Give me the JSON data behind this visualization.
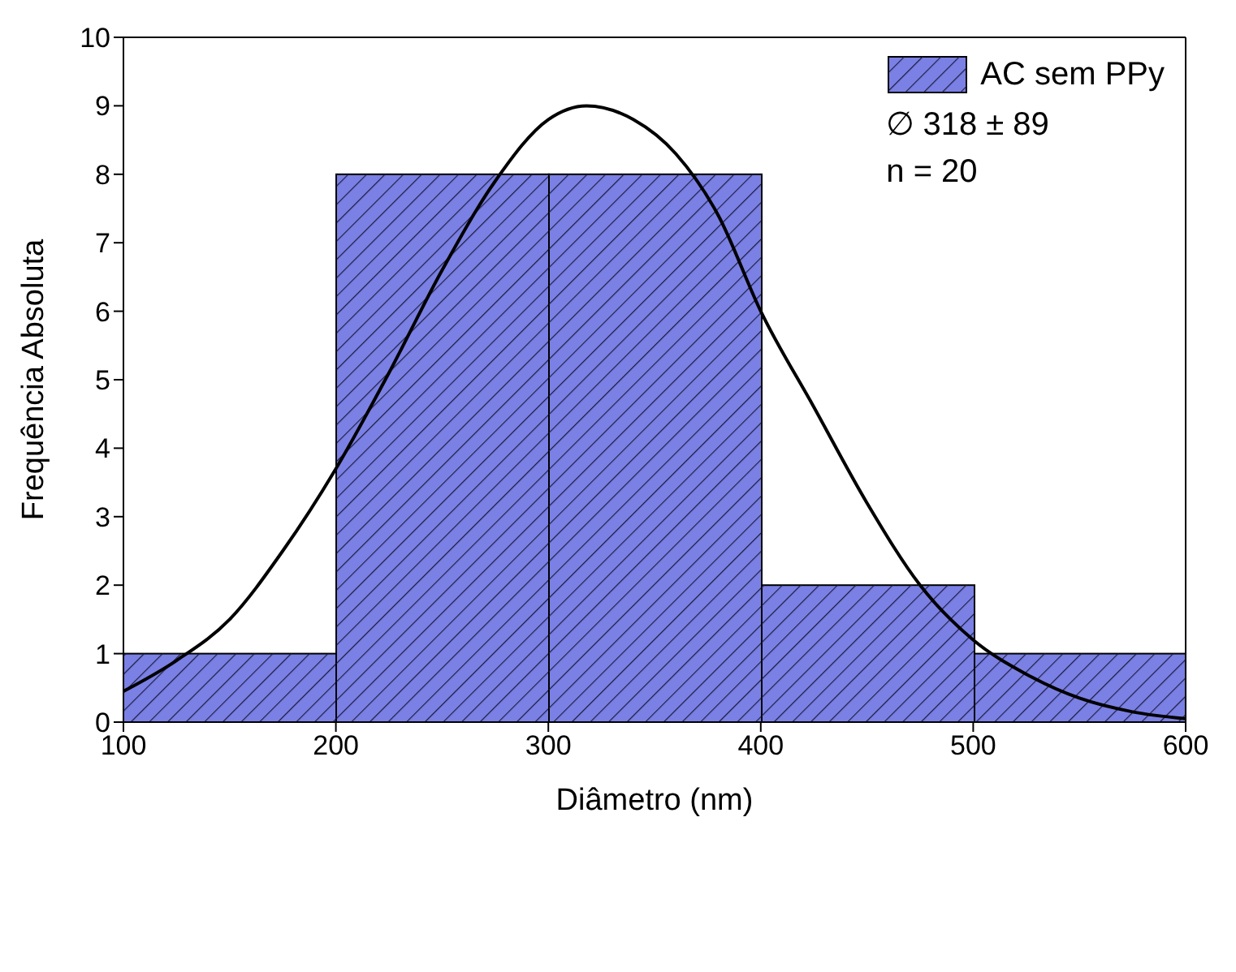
{
  "chart_data": {
    "type": "histogram",
    "xlabel": "Diâmetro (nm)",
    "ylabel": "Frequência Absoluta",
    "bins": [
      100,
      200,
      300,
      400,
      500,
      600
    ],
    "series": [
      {
        "name": "AC sem PPy",
        "color": "#7b80e4",
        "values": [
          1,
          8,
          8,
          2,
          1
        ]
      },
      {
        "type": "line",
        "color": "#000000",
        "x": [
          100,
          125,
          150,
          175,
          200,
          225,
          250,
          275,
          300,
          318,
          340,
          360,
          380,
          400,
          425,
          450,
          475,
          500,
          525,
          550,
          575,
          600
        ],
        "values": [
          0.45,
          0.9,
          1.5,
          2.5,
          3.7,
          5.1,
          6.6,
          7.9,
          8.8,
          9.0,
          8.8,
          8.3,
          7.4,
          6.0,
          4.6,
          3.2,
          2.0,
          1.2,
          0.7,
          0.35,
          0.15,
          0.05
        ]
      }
    ],
    "xlim": [
      100,
      600
    ],
    "xticks": [
      100,
      200,
      300,
      400,
      500,
      600
    ],
    "ylim": [
      0,
      10
    ],
    "yticks": [
      0,
      1,
      2,
      3,
      4,
      5,
      6,
      7,
      8,
      9,
      10
    ],
    "legend": "top right",
    "grid": false,
    "marker": "none",
    "annotations": [
      "∅ 318 ± 89",
      "n = 20"
    ]
  }
}
